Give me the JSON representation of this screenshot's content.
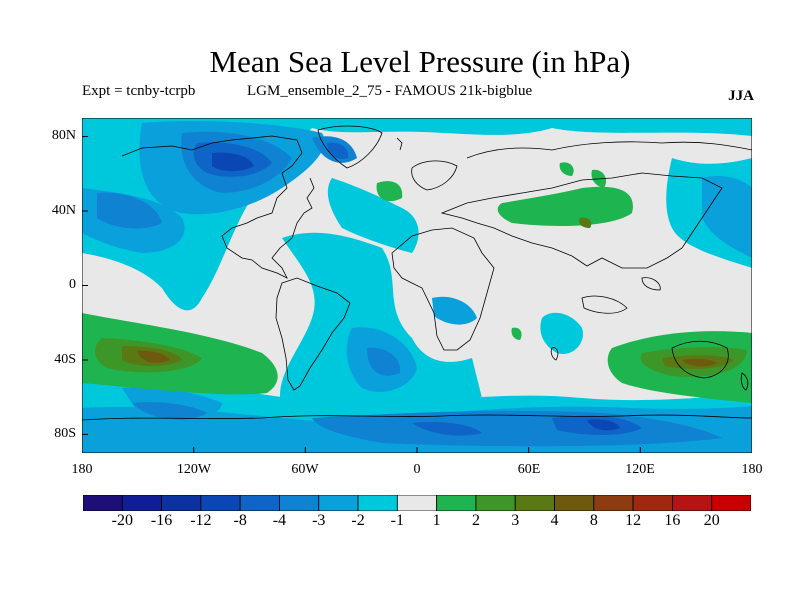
{
  "header": {
    "title": "Mean Sea Level Pressure (in hPa)",
    "expt": "Expt = tcnby-tcrpb",
    "run": "LGM_ensemble_2_75 - FAMOUS 21k-bigblue",
    "season": "JJA"
  },
  "map_axes": {
    "lat_labels": [
      "80N",
      "40N",
      "0",
      "40S",
      "80S"
    ],
    "lon_labels": [
      "180",
      "120W",
      "60W",
      "0",
      "60E",
      "120E",
      "180"
    ]
  },
  "colorbar": {
    "labels": [
      "-20",
      "-16",
      "-12",
      "-8",
      "-4",
      "-3",
      "-2",
      "-1",
      "1",
      "2",
      "3",
      "4",
      "8",
      "12",
      "16",
      "20"
    ],
    "colors": [
      "#1e0f78",
      "#0f1e96",
      "#0a32a0",
      "#0a46b4",
      "#0f64c8",
      "#0f82d2",
      "#0aa0dc",
      "#00c8dc",
      "#e8e8e8",
      "#1eb450",
      "#3c9628",
      "#5a7814",
      "#6e5a0f",
      "#8c3c0f",
      "#a0280f",
      "#b41414",
      "#c80000"
    ]
  },
  "colors": {
    "background_neutral": "#e8e8e8",
    "coast": "#000000"
  }
}
